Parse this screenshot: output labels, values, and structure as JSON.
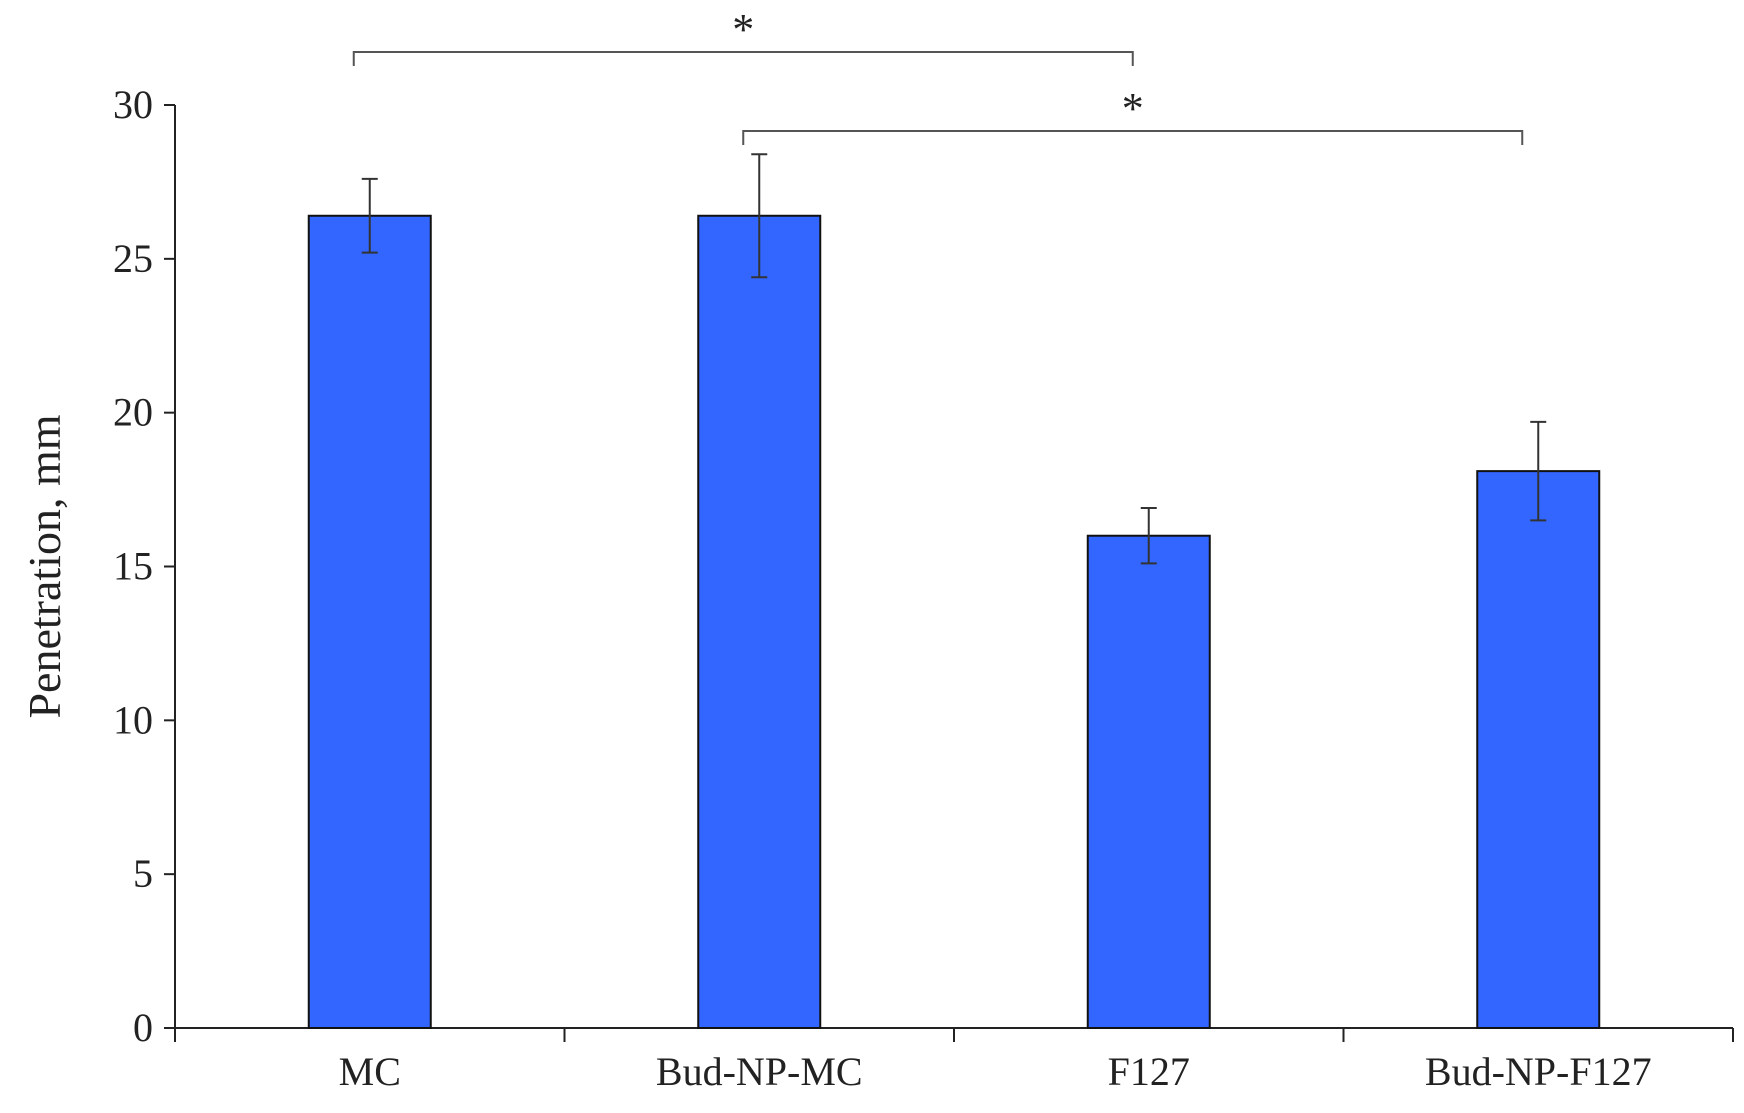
{
  "chart_data": {
    "type": "bar",
    "title": "",
    "xlabel": "",
    "ylabel": "Penetration, mm",
    "ylim": [
      0,
      30
    ],
    "yticks": [
      0,
      5,
      10,
      15,
      20,
      25,
      30
    ],
    "categories": [
      "MC",
      "Bud-NP-MC",
      "F127",
      "Bud-NP-F127"
    ],
    "values": [
      26.4,
      26.4,
      16.0,
      18.1
    ],
    "errors": [
      1.2,
      2.0,
      0.9,
      1.6
    ],
    "bar_color": "#3366ff",
    "grid": false,
    "legend": "none",
    "significance": [
      {
        "from": 0,
        "to": 2,
        "label": "*"
      },
      {
        "from": 1,
        "to": 3,
        "label": "*"
      }
    ]
  }
}
